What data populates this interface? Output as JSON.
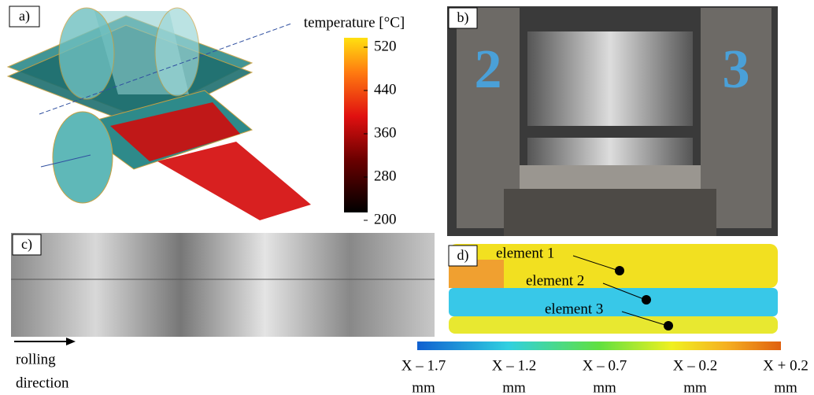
{
  "panels": [
    {
      "label": "a)"
    },
    {
      "label": "b)"
    },
    {
      "label": "c)"
    },
    {
      "label": "d)"
    }
  ],
  "temperature_scale": {
    "title": "temperature [°C]",
    "ticks": [
      520,
      440,
      360,
      280,
      200
    ]
  },
  "rolling_note": [
    "rolling",
    "direction"
  ],
  "elements": [
    "element 1",
    "element 2",
    "element 3"
  ],
  "deviation_scale": {
    "ticks": [
      {
        "label": "X – 1.7",
        "unit": "mm"
      },
      {
        "label": "X – 1.2",
        "unit": "mm"
      },
      {
        "label": "X – 0.7",
        "unit": "mm"
      },
      {
        "label": "X – 0.2",
        "unit": "mm"
      },
      {
        "label": "X + 0.2",
        "unit": "mm"
      }
    ]
  }
}
